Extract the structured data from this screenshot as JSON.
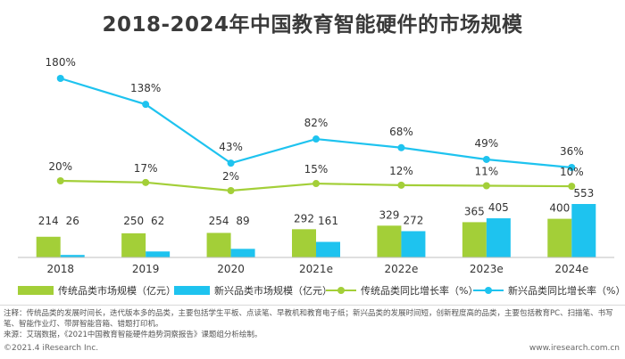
{
  "title": "2018-2024年中国教育智能硬件的市场规模",
  "chart_data": {
    "type": "bar",
    "categories": [
      "2018",
      "2019",
      "2020",
      "2021e",
      "2022e",
      "2023e",
      "2024e"
    ],
    "bar_series": [
      {
        "name": "传统品类市场规模（亿元）",
        "values": [
          214,
          250,
          254,
          292,
          329,
          365,
          400
        ],
        "color": "#a3cf38"
      },
      {
        "name": "新兴品类市场规模（亿元）",
        "values": [
          26,
          62,
          89,
          161,
          272,
          405,
          553
        ],
        "color": "#1ec3ef"
      }
    ],
    "line_series": [
      {
        "name": "传统品类同比增长率（%）",
        "values": [
          20,
          17,
          2,
          15,
          12,
          11,
          10
        ],
        "labels": [
          "20%",
          "17%",
          "2%",
          "15%",
          "12%",
          "11%",
          "10%"
        ],
        "color": "#a3cf38"
      },
      {
        "name": "新兴品类同比增长率（%）",
        "values": [
          180,
          138,
          43,
          82,
          68,
          49,
          36
        ],
        "labels": [
          "180%",
          "138%",
          "43%",
          "82%",
          "68%",
          "49%",
          "36%"
        ],
        "color": "#1ec3ef"
      }
    ],
    "legend_position": "bottom",
    "grid": false
  },
  "notes": [
    "注释：传统品类的发展时间长，迭代版本多的品类，主要包括学生平板、点读笔、早教机和教育电子纸；新兴品类的发展时间短，创新程度高的品类，主要包括教育PC、扫描笔、书写笔、智能作业灯、带屏智能音箱、错题打印机。",
    "来源：艾瑞数据，《2021中国教育智能硬件趋势洞察报告》课题组分析绘制。"
  ],
  "footer": {
    "left": "©2021.4 iResearch Inc.",
    "right": "www.iresearch.com.cn"
  }
}
